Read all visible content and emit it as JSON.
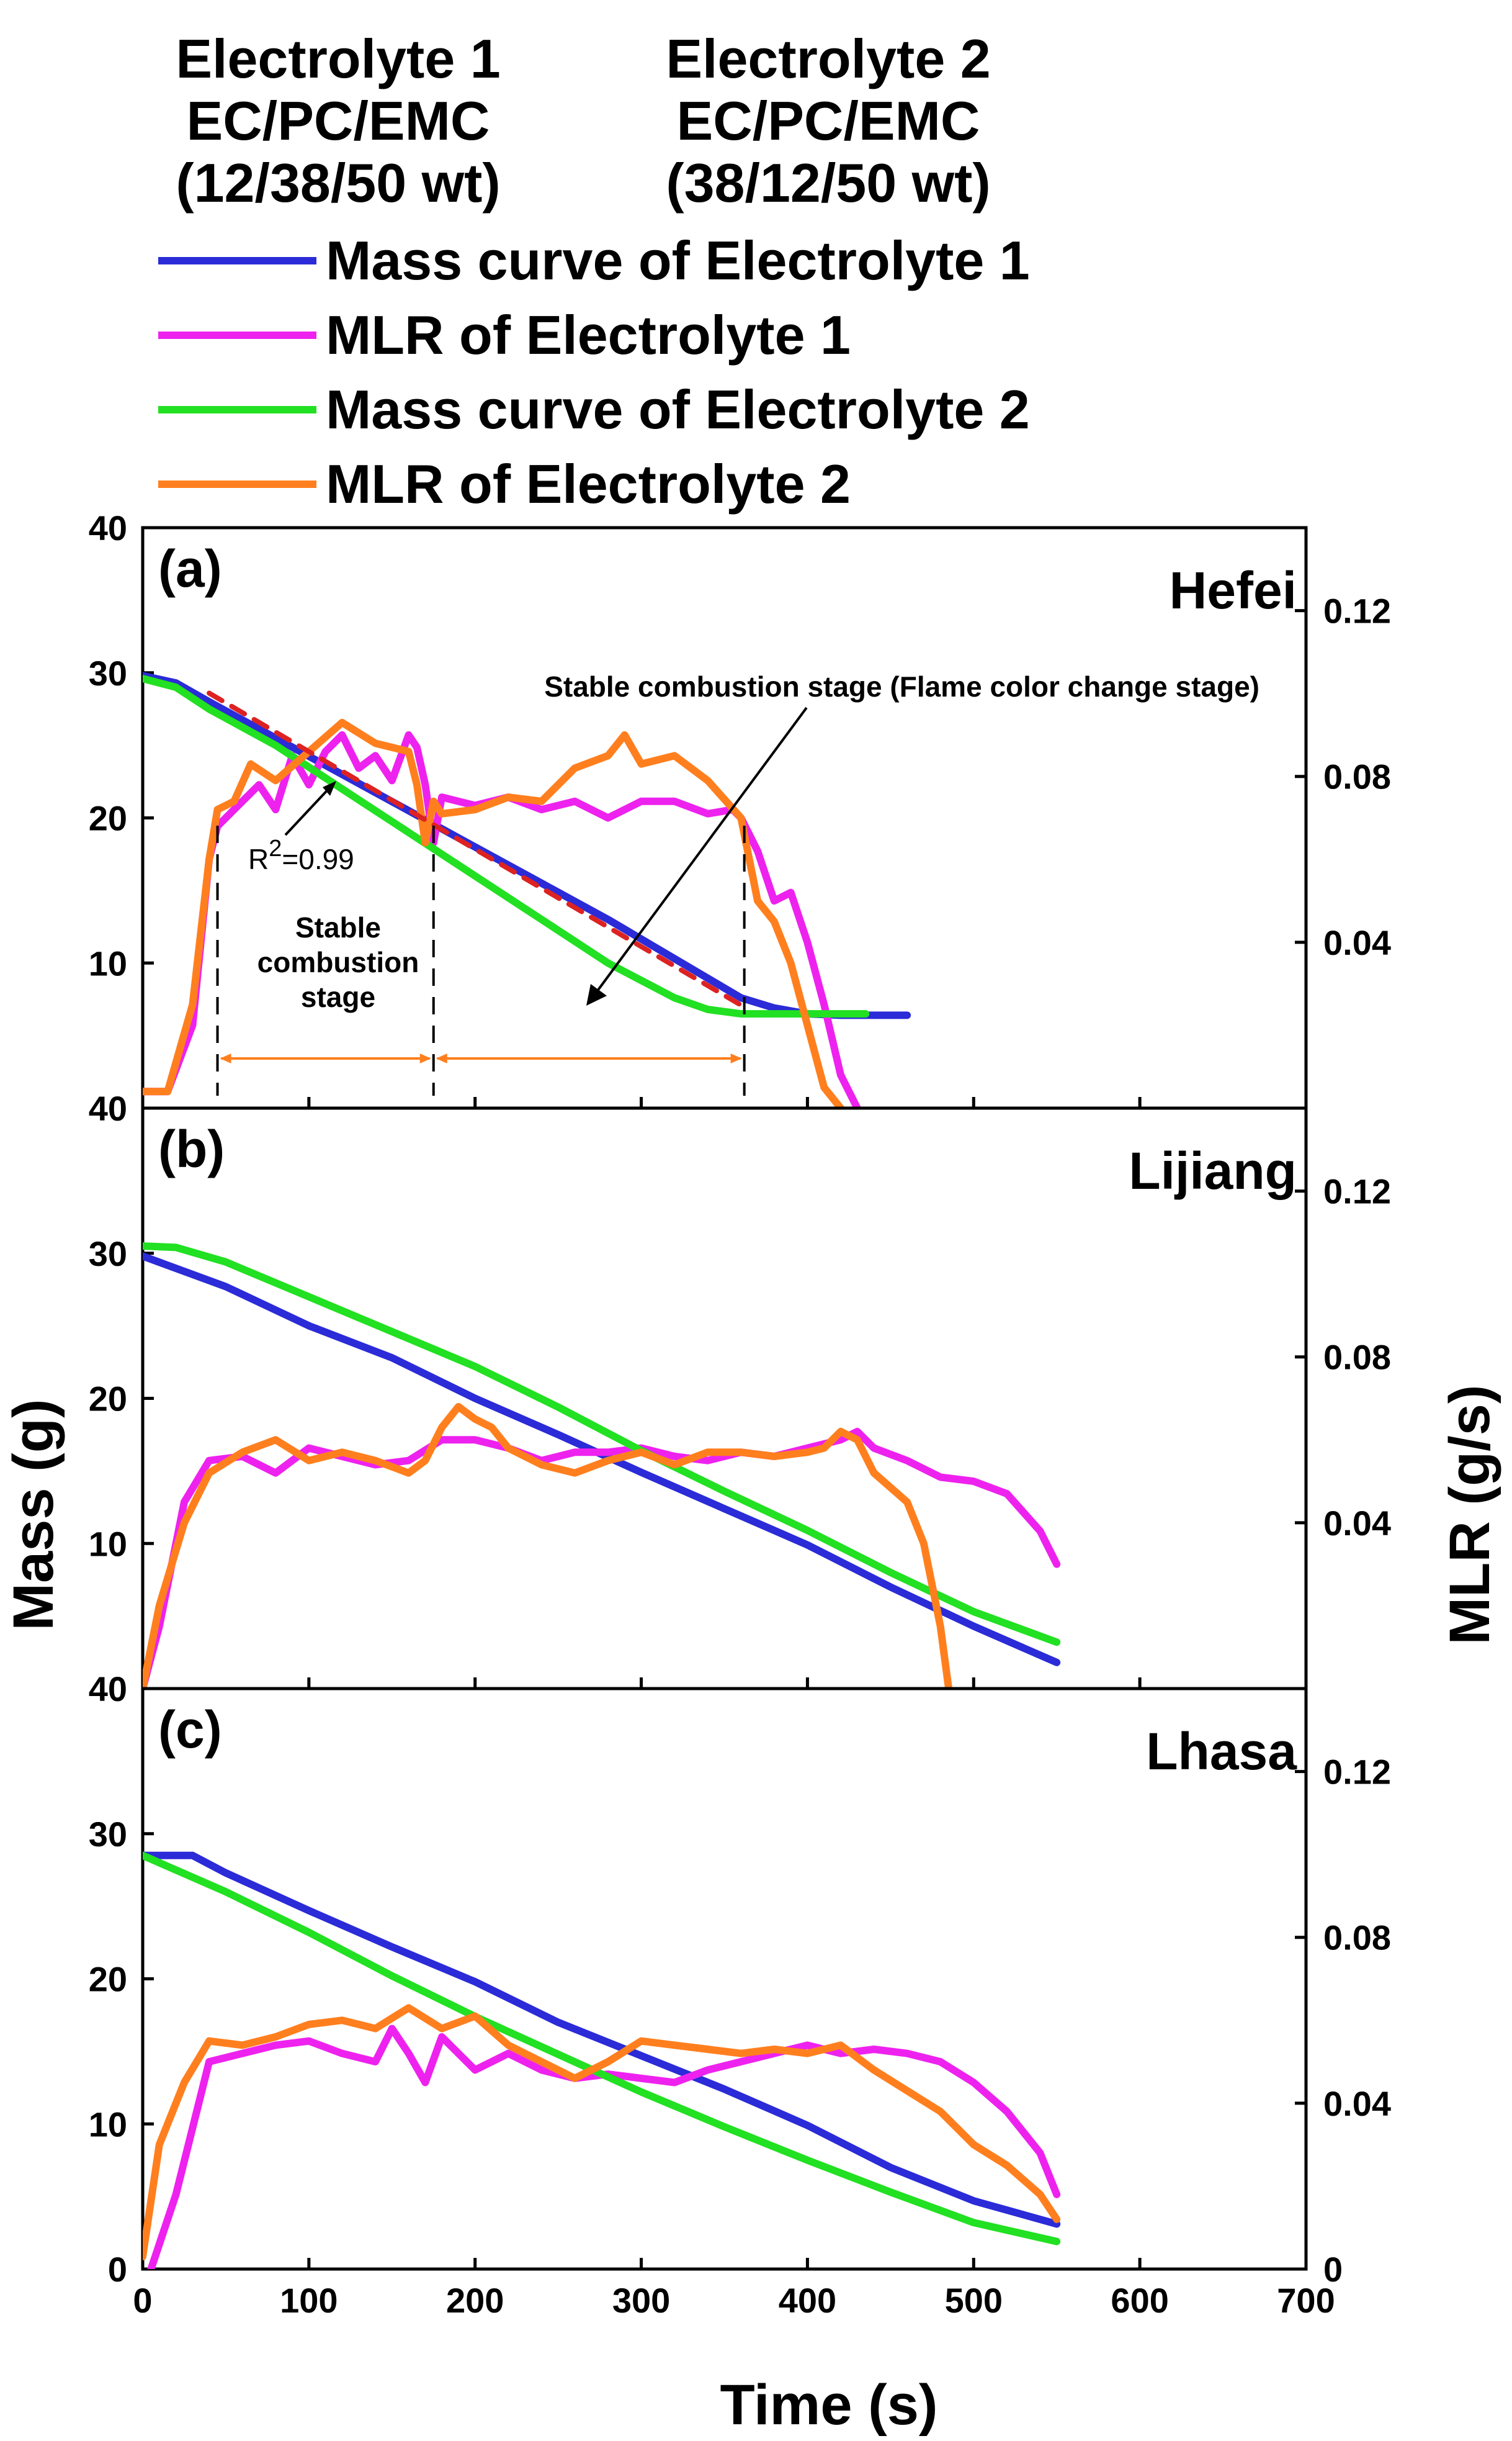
{
  "header": {
    "e1": {
      "name": "Electrolyte 1",
      "solvent": "EC/PC/EMC",
      "ratio": "(12/38/50 wt)"
    },
    "e2": {
      "name": "Electrolyte 2",
      "solvent": "EC/PC/EMC",
      "ratio": "(38/12/50 wt)"
    }
  },
  "legend": [
    {
      "label": "Mass curve of Electrolyte 1",
      "color": "#2b2bd8"
    },
    {
      "label": "MLR of Electrolyte 1",
      "color": "#ee22ee"
    },
    {
      "label": "Mass curve of Electrolyte 2",
      "color": "#22e022"
    },
    {
      "label": "MLR of Electrolyte 2",
      "color": "#ff7f1e"
    }
  ],
  "annotations": {
    "stable_stage_flame": "Stable combustion stage (Flame color change stage)",
    "r2_prefix": "R",
    "r2_sup": "2",
    "r2_value": "=0.99",
    "stable_line1": "Stable",
    "stable_line2": "combustion",
    "stable_line3": "stage"
  },
  "axes": {
    "xlabel": "Time (s)",
    "ylabel_left": "Mass (g)",
    "ylabel_right": "MLR (g/s)",
    "xticks": [
      "0",
      "100",
      "200",
      "300",
      "400",
      "500",
      "600",
      "700"
    ],
    "yticks_left": [
      "0",
      "10",
      "20",
      "30",
      "40"
    ],
    "yticks_right": [
      "0",
      "0.04",
      "0.08",
      "0.12"
    ]
  },
  "chart_data": [
    {
      "type": "line",
      "panel": "(a)",
      "location": "Hefei",
      "xlim": [
        0,
        700
      ],
      "ylim_left": [
        0,
        40
      ],
      "ylim_right": [
        0,
        0.14
      ],
      "series": [
        {
          "name": "Mass curve of Electrolyte 1",
          "axis": "left",
          "color": "#2b2bd8",
          "x": [
            0,
            20,
            40,
            80,
            120,
            160,
            200,
            240,
            280,
            320,
            360,
            380,
            400,
            420,
            440,
            460
          ],
          "y": [
            29.8,
            29.3,
            28.0,
            25.5,
            23.0,
            20.5,
            18.0,
            15.5,
            13.0,
            10.3,
            7.6,
            6.9,
            6.5,
            6.4,
            6.4,
            6.4
          ]
        },
        {
          "name": "MLR of Electrolyte 1",
          "axis": "right",
          "color": "#ee22ee",
          "x": [
            0,
            15,
            30,
            40,
            45,
            55,
            70,
            80,
            90,
            100,
            110,
            120,
            130,
            140,
            150,
            160,
            165,
            170,
            175,
            180,
            190,
            200,
            220,
            240,
            260,
            280,
            300,
            320,
            340,
            355,
            360,
            370,
            380,
            390,
            400,
            410,
            420,
            430
          ],
          "y": [
            0.004,
            0.004,
            0.02,
            0.06,
            0.068,
            0.072,
            0.078,
            0.072,
            0.085,
            0.078,
            0.086,
            0.09,
            0.082,
            0.085,
            0.079,
            0.09,
            0.087,
            0.078,
            0.064,
            0.075,
            0.074,
            0.073,
            0.075,
            0.072,
            0.074,
            0.07,
            0.074,
            0.074,
            0.071,
            0.072,
            0.07,
            0.062,
            0.05,
            0.052,
            0.04,
            0.025,
            0.008,
            0.0
          ]
        },
        {
          "name": "Mass curve of Electrolyte 2",
          "axis": "left",
          "color": "#22e022",
          "x": [
            0,
            20,
            40,
            80,
            120,
            160,
            200,
            240,
            280,
            320,
            340,
            360,
            380,
            400,
            420,
            435
          ],
          "y": [
            29.6,
            29.0,
            27.5,
            25.0,
            22.0,
            19.0,
            16.0,
            13.0,
            10.0,
            7.6,
            6.8,
            6.5,
            6.5,
            6.5,
            6.5,
            6.5
          ]
        },
        {
          "name": "MLR of Electrolyte 2",
          "axis": "right",
          "color": "#ff7f1e",
          "x": [
            0,
            15,
            30,
            40,
            45,
            55,
            65,
            80,
            100,
            120,
            140,
            160,
            165,
            170,
            175,
            180,
            200,
            220,
            240,
            260,
            280,
            290,
            300,
            320,
            340,
            360,
            365,
            370,
            380,
            390,
            400,
            410,
            420
          ],
          "y": [
            0.004,
            0.004,
            0.025,
            0.06,
            0.072,
            0.074,
            0.083,
            0.079,
            0.086,
            0.093,
            0.088,
            0.086,
            0.078,
            0.064,
            0.074,
            0.071,
            0.072,
            0.075,
            0.074,
            0.082,
            0.085,
            0.09,
            0.083,
            0.085,
            0.079,
            0.07,
            0.06,
            0.05,
            0.045,
            0.035,
            0.02,
            0.005,
            0.0
          ]
        },
        {
          "name": "Linear fit",
          "axis": "left",
          "color": "#dd2222",
          "dashed": true,
          "x": [
            40,
            360
          ],
          "y": [
            28.6,
            7.1
          ]
        }
      ],
      "stage_markers_s": [
        45,
        175,
        362
      ],
      "annotation_arrow": "Stable combustion stage (Flame color change stage)"
    },
    {
      "type": "line",
      "panel": "(b)",
      "location": "Lijiang",
      "xlim": [
        0,
        700
      ],
      "ylim_left": [
        0,
        40
      ],
      "ylim_right": [
        0,
        0.14
      ],
      "series": [
        {
          "name": "Mass curve of Electrolyte 1",
          "axis": "left",
          "color": "#2b2bd8",
          "x": [
            0,
            50,
            100,
            150,
            200,
            250,
            300,
            350,
            400,
            450,
            500,
            550
          ],
          "y": [
            29.8,
            27.7,
            25.0,
            22.8,
            20.0,
            17.5,
            14.9,
            12.4,
            9.9,
            7.0,
            4.3,
            1.8
          ]
        },
        {
          "name": "MLR of Electrolyte 1",
          "axis": "right",
          "color": "#ee22ee",
          "x": [
            0,
            10,
            25,
            40,
            60,
            80,
            100,
            120,
            140,
            160,
            180,
            200,
            220,
            240,
            260,
            280,
            300,
            320,
            340,
            360,
            380,
            400,
            420,
            430,
            440,
            460,
            480,
            500,
            520,
            540,
            550
          ],
          "y": [
            0.0,
            0.015,
            0.045,
            0.055,
            0.056,
            0.052,
            0.058,
            0.056,
            0.054,
            0.055,
            0.06,
            0.06,
            0.058,
            0.055,
            0.057,
            0.057,
            0.058,
            0.056,
            0.055,
            0.057,
            0.056,
            0.058,
            0.06,
            0.062,
            0.058,
            0.055,
            0.051,
            0.05,
            0.047,
            0.038,
            0.03
          ]
        },
        {
          "name": "Mass curve of Electrolyte 2",
          "axis": "left",
          "color": "#22e022",
          "x": [
            0,
            20,
            50,
            100,
            150,
            200,
            250,
            300,
            350,
            400,
            450,
            500,
            550
          ],
          "y": [
            30.5,
            30.4,
            29.4,
            27.0,
            24.6,
            22.2,
            19.4,
            16.4,
            13.6,
            10.9,
            8.0,
            5.3,
            3.2
          ]
        },
        {
          "name": "MLR of Electrolyte 2",
          "axis": "right",
          "color": "#ff7f1e",
          "x": [
            0,
            10,
            25,
            40,
            60,
            80,
            100,
            120,
            140,
            160,
            170,
            180,
            190,
            200,
            210,
            220,
            240,
            260,
            280,
            300,
            320,
            340,
            360,
            380,
            400,
            410,
            420,
            430,
            440,
            460,
            470,
            480,
            485
          ],
          "y": [
            0.0,
            0.02,
            0.04,
            0.052,
            0.057,
            0.06,
            0.055,
            0.057,
            0.055,
            0.052,
            0.055,
            0.063,
            0.068,
            0.065,
            0.063,
            0.058,
            0.054,
            0.052,
            0.055,
            0.057,
            0.054,
            0.057,
            0.057,
            0.056,
            0.057,
            0.058,
            0.062,
            0.06,
            0.052,
            0.045,
            0.035,
            0.015,
            0.0
          ]
        }
      ]
    },
    {
      "type": "line",
      "panel": "(c)",
      "location": "Lhasa",
      "xlim": [
        0,
        700
      ],
      "ylim_left": [
        0,
        40
      ],
      "ylim_right": [
        0,
        0.14
      ],
      "series": [
        {
          "name": "Mass curve of Electrolyte 1",
          "axis": "left",
          "color": "#2b2bd8",
          "x": [
            0,
            30,
            50,
            100,
            150,
            200,
            250,
            300,
            350,
            400,
            450,
            500,
            550
          ],
          "y": [
            28.5,
            28.5,
            27.3,
            24.7,
            22.2,
            19.8,
            17.0,
            14.7,
            12.4,
            9.9,
            7.0,
            4.7,
            3.1
          ]
        },
        {
          "name": "MLR of Electrolyte 1",
          "axis": "right",
          "color": "#ee22ee",
          "x": [
            5,
            20,
            40,
            60,
            80,
            100,
            120,
            140,
            150,
            160,
            170,
            180,
            200,
            220,
            240,
            260,
            280,
            300,
            320,
            340,
            360,
            380,
            400,
            420,
            440,
            460,
            480,
            500,
            520,
            540,
            550
          ],
          "y": [
            0.0,
            0.018,
            0.05,
            0.052,
            0.054,
            0.055,
            0.052,
            0.05,
            0.058,
            0.052,
            0.045,
            0.056,
            0.048,
            0.052,
            0.048,
            0.046,
            0.047,
            0.046,
            0.045,
            0.048,
            0.05,
            0.052,
            0.054,
            0.052,
            0.053,
            0.052,
            0.05,
            0.045,
            0.038,
            0.028,
            0.018
          ]
        },
        {
          "name": "Mass curve of Electrolyte 2",
          "axis": "left",
          "color": "#22e022",
          "x": [
            0,
            50,
            100,
            150,
            200,
            250,
            300,
            350,
            400,
            450,
            500,
            550
          ],
          "y": [
            28.5,
            26.0,
            23.2,
            20.2,
            17.4,
            14.8,
            12.2,
            9.8,
            7.5,
            5.3,
            3.2,
            1.9
          ]
        },
        {
          "name": "MLR of Electrolyte 2",
          "axis": "right",
          "color": "#ff7f1e",
          "x": [
            0,
            10,
            25,
            40,
            60,
            80,
            100,
            120,
            140,
            160,
            180,
            200,
            220,
            240,
            260,
            280,
            300,
            320,
            340,
            360,
            380,
            400,
            420,
            440,
            460,
            480,
            500,
            520,
            540,
            550
          ],
          "y": [
            0.003,
            0.03,
            0.045,
            0.055,
            0.054,
            0.056,
            0.059,
            0.06,
            0.058,
            0.063,
            0.058,
            0.061,
            0.054,
            0.05,
            0.046,
            0.05,
            0.055,
            0.054,
            0.053,
            0.052,
            0.053,
            0.052,
            0.054,
            0.048,
            0.043,
            0.038,
            0.03,
            0.025,
            0.018,
            0.012
          ]
        }
      ]
    }
  ]
}
